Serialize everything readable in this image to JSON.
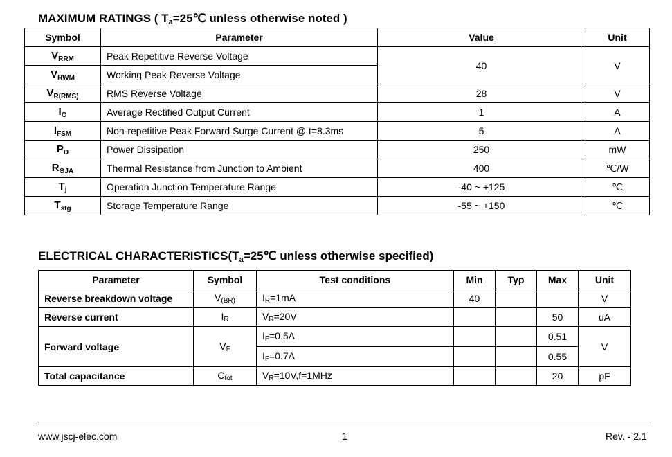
{
  "max_ratings": {
    "title_pre": "MAXIMUM RATINGS ( T",
    "title_sub": "a",
    "title_post": "=25℃ unless otherwise noted )",
    "headers": [
      "Symbol",
      "Parameter",
      "Value",
      "Unit"
    ],
    "rows": [
      {
        "sym": "V",
        "sub": "RRM",
        "param": "Peak Repetitive Reverse Voltage",
        "value": "40",
        "unit": "V"
      },
      {
        "sym": "V",
        "sub": "RWM",
        "param": "Working Peak Reverse Voltage"
      },
      {
        "sym": "V",
        "sub": "R(RMS)",
        "param": "RMS Reverse Voltage",
        "value": "28",
        "unit": "V"
      },
      {
        "sym": "I",
        "sub": "O",
        "param": "Average Rectified Output Current",
        "value": "1",
        "unit": "A"
      },
      {
        "sym": "I",
        "sub": "FSM",
        "param": "Non-repetitive Peak Forward Surge Current @ t=8.3ms",
        "value": "5",
        "unit": "A"
      },
      {
        "sym": "P",
        "sub": "D",
        "param": "Power Dissipation",
        "value": "250",
        "unit": "mW"
      },
      {
        "sym": "R",
        "sub": "ΘJA",
        "param": "Thermal Resistance from Junction to Ambient",
        "value": "400",
        "unit": "℃/W"
      },
      {
        "sym": "T",
        "sub": "j",
        "param": "Operation Junction Temperature Range",
        "value": "-40 ~ +125",
        "unit": "℃"
      },
      {
        "sym": "T",
        "sub": "stg",
        "param": "Storage Temperature Range",
        "value": "-55 ~ +150",
        "unit": "℃"
      }
    ]
  },
  "electrical": {
    "title_pre": "ELECTRICAL CHARACTERISTICS(T",
    "title_sub": "a",
    "title_post": "=25℃ unless otherwise specified)",
    "headers": [
      "Parameter",
      "Symbol",
      "Test conditions",
      "Min",
      "Typ",
      "Max",
      "Unit"
    ],
    "rows": [
      {
        "param": "Reverse breakdown voltage",
        "sym": "V",
        "sub": "(BR)",
        "cond": "I",
        "cond_sub": "R",
        "cond_post": "=1mA",
        "min": "40",
        "max": "",
        "unit": "V"
      },
      {
        "param": "Reverse current",
        "sym": "I",
        "sub": "R",
        "cond": "V",
        "cond_sub": "R",
        "cond_post": "=20V",
        "max": "50",
        "unit": "uA"
      },
      {
        "param": "Forward voltage",
        "sym": "V",
        "sub": "F",
        "cond": "I",
        "cond_sub": "F",
        "cond_post": "=0.5A",
        "max": "0.51",
        "unit": "V"
      },
      {
        "cond": "I",
        "cond_sub": "F",
        "cond_post": "=0.7A",
        "max": "0.55"
      },
      {
        "param": "Total capacitance",
        "sym": "C",
        "sub": "tot",
        "cond": "V",
        "cond_sub": "R",
        "cond_post": "=10V,f=1MHz",
        "max": "20",
        "unit": "pF"
      }
    ]
  },
  "footer": {
    "website": "www.jscj-elec.com",
    "page": "1",
    "revision": "Rev. - 2.1"
  }
}
